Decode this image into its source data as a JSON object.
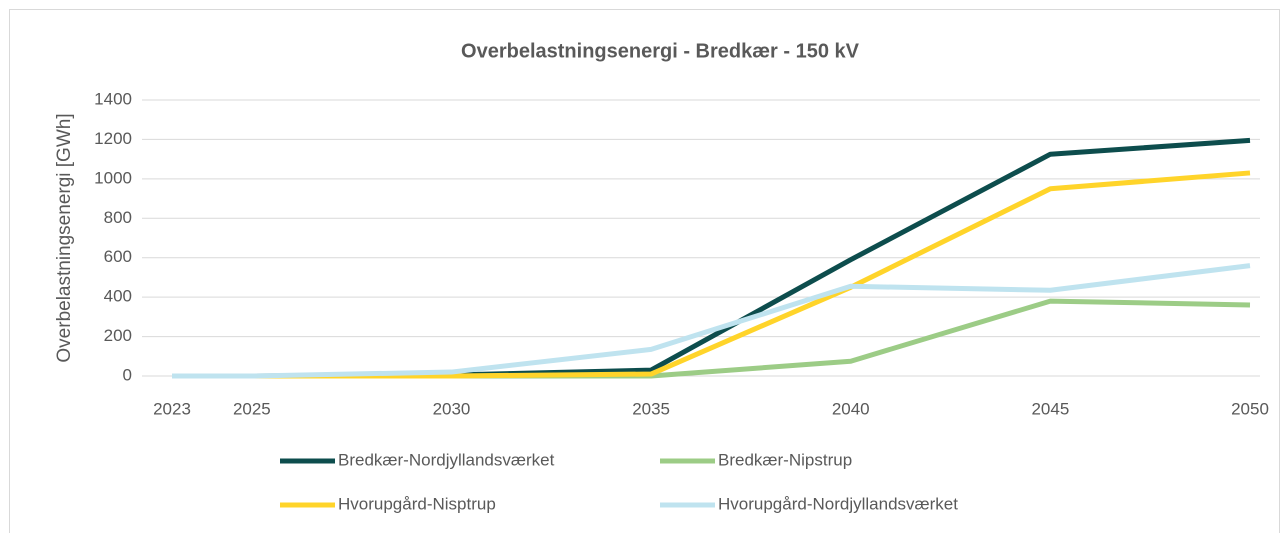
{
  "chart_data": {
    "type": "line",
    "title": "Overbelastningsenergi - Bredkær - 150 kV",
    "y_label": "Overbelastningsenergi [GWh]",
    "x": [
      2023,
      2025,
      2030,
      2035,
      2040,
      2045,
      2050
    ],
    "xlim": [
      2023,
      2050
    ],
    "xticks": [
      2023,
      2025,
      2030,
      2035,
      2040,
      2045,
      2050
    ],
    "ylim": [
      0,
      1400
    ],
    "yticks": [
      0,
      200,
      400,
      600,
      800,
      1000,
      1200,
      1400
    ],
    "grid": true,
    "legend": "bottom",
    "series": [
      {
        "name": "Bredkær-Nordjyllandsværket",
        "color": "#0d4d4d",
        "values": [
          0,
          0,
          5,
          30,
          590,
          1125,
          1195
        ]
      },
      {
        "name": "Bredkær-Nipstrup",
        "color": "#9ccc86",
        "values": [
          0,
          0,
          0,
          0,
          75,
          380,
          360
        ]
      },
      {
        "name": "Hvorupgård-Nisptrup",
        "color": "#ffd42a",
        "values": [
          0,
          0,
          0,
          10,
          450,
          950,
          1030
        ]
      },
      {
        "name": "Hvorupgård-Nordjyllandsværket",
        "color": "#bfe3ef",
        "values": [
          0,
          0,
          20,
          135,
          455,
          435,
          560
        ]
      }
    ]
  }
}
